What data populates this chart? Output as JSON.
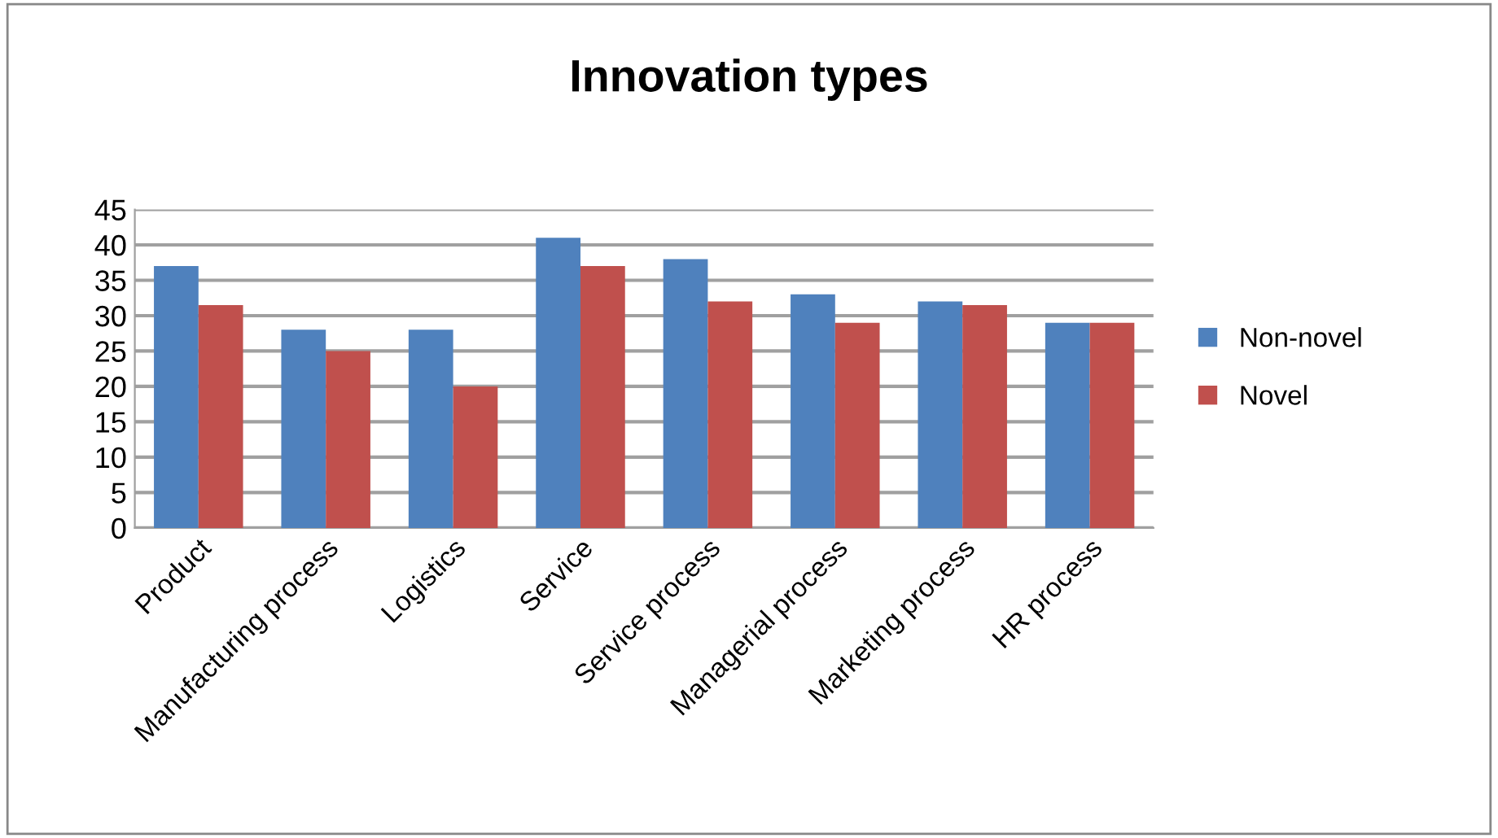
{
  "chart_data": {
    "type": "bar",
    "title": "Innovation types",
    "categories": [
      "Product",
      "Manufacturing process",
      "Logistics",
      "Service",
      "Service process",
      "Managerial process",
      "Marketing process",
      "HR process"
    ],
    "series": [
      {
        "name": "Non-novel",
        "color": "#4f81bd",
        "values": [
          37,
          28,
          28,
          41,
          38,
          33,
          32,
          29
        ]
      },
      {
        "name": "Novel",
        "color": "#c0504d",
        "values": [
          31.5,
          25,
          20,
          37,
          32,
          29,
          31.5,
          29
        ]
      }
    ],
    "ylim": [
      0,
      45
    ],
    "yticks": [
      0,
      5,
      10,
      15,
      20,
      25,
      30,
      35,
      40,
      45
    ],
    "grid": "y",
    "legend": "right"
  }
}
